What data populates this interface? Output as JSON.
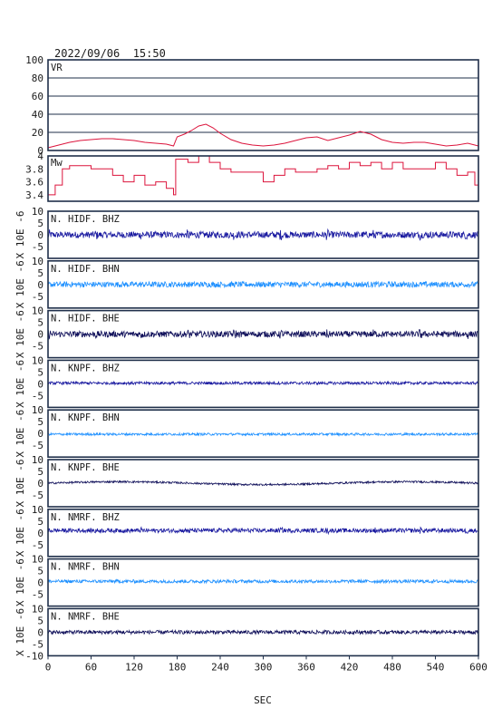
{
  "header": {
    "timestamp": "2022/09/06  15:50"
  },
  "colors": {
    "vr_mw": "#dc143c",
    "dark_blue": "#1a1aa0",
    "light_blue": "#1e90ff",
    "navy": "#10105a",
    "frame": "#1f2f4a"
  },
  "chart_data": {
    "type": "line",
    "xlabel": "SEC",
    "xlim": [
      0,
      600
    ],
    "xticks": [
      0,
      60,
      120,
      180,
      240,
      300,
      360,
      420,
      480,
      540,
      600
    ],
    "vr": {
      "label": "VR",
      "ylim": [
        0,
        100
      ],
      "yticks": [
        0,
        20,
        40,
        60,
        80,
        100
      ],
      "x": [
        0,
        15,
        30,
        45,
        60,
        75,
        90,
        105,
        120,
        135,
        150,
        165,
        175,
        180,
        190,
        200,
        210,
        220,
        230,
        240,
        255,
        270,
        285,
        300,
        315,
        330,
        345,
        360,
        375,
        390,
        405,
        420,
        435,
        450,
        465,
        480,
        495,
        510,
        525,
        540,
        555,
        570,
        585,
        600
      ],
      "y": [
        3,
        6,
        9,
        11,
        12,
        13,
        13,
        12,
        11,
        9,
        8,
        7,
        5,
        15,
        18,
        22,
        27,
        29,
        25,
        19,
        12,
        8,
        6,
        5,
        6,
        8,
        11,
        14,
        15,
        11,
        14,
        17,
        21,
        18,
        12,
        9,
        8,
        9,
        9,
        7,
        5,
        6,
        8,
        5
      ]
    },
    "mw": {
      "label": "Mw",
      "ylim": [
        3.3,
        4.0
      ],
      "yticks": [
        3.4,
        3.6,
        3.8,
        4.0
      ],
      "x": [
        0,
        10,
        20,
        30,
        45,
        60,
        75,
        90,
        105,
        120,
        135,
        150,
        165,
        175,
        178,
        185,
        195,
        210,
        225,
        240,
        255,
        270,
        285,
        300,
        315,
        330,
        345,
        360,
        375,
        390,
        405,
        420,
        435,
        450,
        465,
        480,
        495,
        510,
        525,
        540,
        555,
        570,
        585,
        595,
        600
      ],
      "y": [
        3.4,
        3.55,
        3.8,
        3.85,
        3.85,
        3.8,
        3.8,
        3.7,
        3.6,
        3.7,
        3.55,
        3.6,
        3.5,
        3.4,
        3.95,
        3.95,
        3.9,
        4.0,
        3.9,
        3.8,
        3.75,
        3.75,
        3.75,
        3.6,
        3.7,
        3.8,
        3.75,
        3.75,
        3.8,
        3.85,
        3.8,
        3.9,
        3.85,
        3.9,
        3.8,
        3.9,
        3.8,
        3.8,
        3.8,
        3.9,
        3.8,
        3.7,
        3.75,
        3.55,
        3.55
      ]
    },
    "traces": [
      {
        "name": "N. HIDF. BHZ",
        "ylim": [
          -10,
          10
        ],
        "yticks": [
          -5,
          0,
          5,
          10
        ],
        "offset": 0,
        "amplitude": 1.4,
        "color": "#1a1aa0"
      },
      {
        "name": "N. HIDF. BHN",
        "ylim": [
          -10,
          10
        ],
        "yticks": [
          -5,
          0,
          5,
          10
        ],
        "offset": 0,
        "amplitude": 1.2,
        "color": "#1e90ff"
      },
      {
        "name": "N. HIDF. BHE",
        "ylim": [
          -10,
          10
        ],
        "yticks": [
          -5,
          0,
          5,
          10
        ],
        "offset": 0,
        "amplitude": 1.3,
        "color": "#10105a"
      },
      {
        "name": "N. KNPF. BHZ",
        "ylim": [
          -10,
          10
        ],
        "yticks": [
          -5,
          0,
          5,
          10
        ],
        "offset": 0.3,
        "amplitude": 0.6,
        "color": "#1a1aa0"
      },
      {
        "name": "N. KNPF. BHN",
        "ylim": [
          -10,
          10
        ],
        "yticks": [
          -5,
          0,
          5,
          10
        ],
        "offset": -0.3,
        "amplitude": 0.5,
        "color": "#1e90ff"
      },
      {
        "name": "N. KNPF. BHE",
        "ylim": [
          -10,
          10
        ],
        "yticks": [
          -5,
          0,
          5,
          10
        ],
        "offset": 0,
        "amplitude": 0.4,
        "color": "#10105a"
      },
      {
        "name": "N. NMRF. BHZ",
        "ylim": [
          -10,
          10
        ],
        "yticks": [
          -5,
          0,
          5,
          10
        ],
        "offset": 1,
        "amplitude": 0.9,
        "color": "#1a1aa0"
      },
      {
        "name": "N. NMRF. BHN",
        "ylim": [
          -10,
          10
        ],
        "yticks": [
          -5,
          0,
          5,
          10
        ],
        "offset": 0.5,
        "amplitude": 0.7,
        "color": "#1e90ff"
      },
      {
        "name": "N. NMRF. BHE",
        "ylim": [
          -10,
          10
        ],
        "yticks": [
          -10,
          -5,
          0,
          5,
          10
        ],
        "offset": 0,
        "amplitude": 0.8,
        "color": "#10105a"
      }
    ],
    "trace_ylabel": "X 10E -6"
  }
}
